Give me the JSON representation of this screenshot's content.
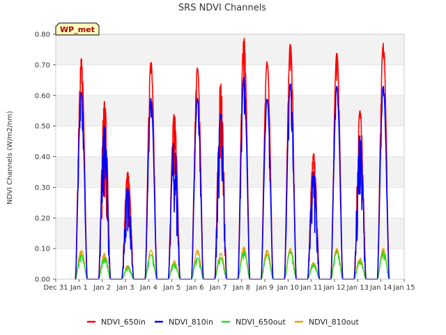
{
  "chart_data": {
    "type": "line",
    "title": "SRS NDVI Channels",
    "xlabel": "",
    "ylabel": "NDVI Channels (W/m2/nm)",
    "ylim": [
      0,
      0.8
    ],
    "xlim": [
      0,
      15
    ],
    "yticks": [
      0.0,
      0.1,
      0.2,
      0.3,
      0.4,
      0.5,
      0.6,
      0.7,
      0.8
    ],
    "ytick_labels": [
      "0.00",
      "0.10",
      "0.20",
      "0.30",
      "0.40",
      "0.50",
      "0.60",
      "0.70",
      "0.80"
    ],
    "xticks": [
      0,
      1,
      2,
      3,
      4,
      5,
      6,
      7,
      8,
      9,
      10,
      11,
      12,
      13,
      14,
      15
    ],
    "xtick_labels": [
      "Dec 31",
      "Jan 1",
      "Jan 2",
      "Jan 3",
      "Jan 4",
      "Jan 5",
      "Jan 6",
      "Jan 7",
      "Jan 8",
      "Jan 9",
      "Jan 10",
      "Jan 11",
      "Jan 12",
      "Jan 13",
      "Jan 14",
      "Jan 15"
    ],
    "annotation": "WP_met",
    "grid": true,
    "legend_position": "bottom",
    "series": [
      {
        "name": "NDVI_650in",
        "color": "#ff0000",
        "daily_peaks": [
          0.72,
          0.58,
          0.35,
          0.71,
          0.54,
          0.69,
          0.64,
          0.79,
          0.71,
          0.77,
          0.41,
          0.74,
          0.55,
          0.77
        ]
      },
      {
        "name": "NDVI_810in",
        "color": "#0000ff",
        "daily_peaks": [
          0.61,
          0.5,
          0.3,
          0.59,
          0.46,
          0.59,
          0.54,
          0.66,
          0.59,
          0.64,
          0.35,
          0.63,
          0.47,
          0.63
        ]
      },
      {
        "name": "NDVI_650out",
        "color": "#22dd22",
        "daily_peaks": [
          0.08,
          0.07,
          0.04,
          0.08,
          0.05,
          0.07,
          0.07,
          0.09,
          0.08,
          0.09,
          0.05,
          0.09,
          0.06,
          0.09
        ]
      },
      {
        "name": "NDVI_810out",
        "color": "#e8a000",
        "daily_peaks": [
          0.095,
          0.085,
          0.045,
          0.095,
          0.06,
          0.095,
          0.085,
          0.105,
          0.095,
          0.1,
          0.055,
          0.1,
          0.07,
          0.1
        ]
      }
    ]
  }
}
